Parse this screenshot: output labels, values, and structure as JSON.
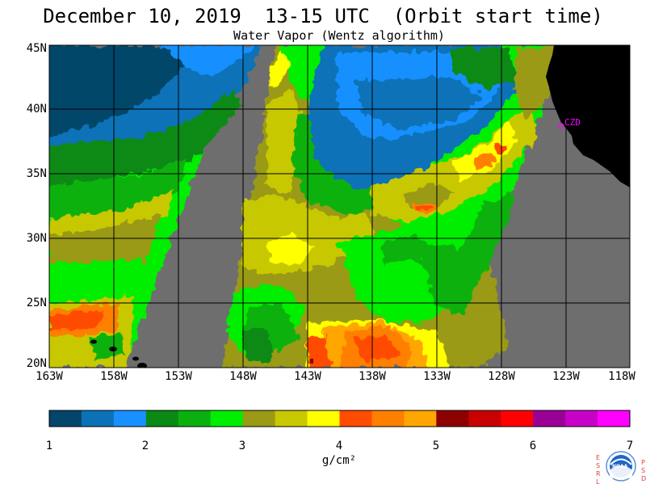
{
  "header": {
    "title": "December 10, 2019  13-15 UTC  (Orbit start time)",
    "subtitle": "Water Vapor (Wentz algorithm)"
  },
  "map": {
    "lat_labels": [
      "45N",
      "40N",
      "35N",
      "30N",
      "25N",
      "20N"
    ],
    "lon_labels": [
      "163W",
      "158W",
      "153W",
      "148W",
      "143W",
      "138W",
      "133W",
      "128W",
      "123W",
      "118W"
    ],
    "station_label": "CZD",
    "colors": {
      "no_data_swath_gap": "#6e6e6e",
      "land": "#000000",
      "grid": "#000000",
      "station": "#ff00ff"
    }
  },
  "colorbar": {
    "tick_labels": [
      "1",
      "2",
      "3",
      "4",
      "5",
      "6",
      "7"
    ],
    "units": "g/cm²",
    "colors": [
      "#04466b",
      "#0b72b8",
      "#1990ff",
      "#0a8a14",
      "#0ab10e",
      "#00ee00",
      "#9a9a14",
      "#c8c800",
      "#ffff00",
      "#ff4c00",
      "#ff7f00",
      "#ffa600",
      "#8c0000",
      "#c80000",
      "#ff0000",
      "#9a0096",
      "#c800c8",
      "#ff00ff"
    ]
  },
  "logo": {
    "left_letters": [
      "E",
      "S",
      "R",
      "L"
    ],
    "right_letters": [
      "P",
      "S",
      "D"
    ],
    "center_text": "NOAA"
  }
}
